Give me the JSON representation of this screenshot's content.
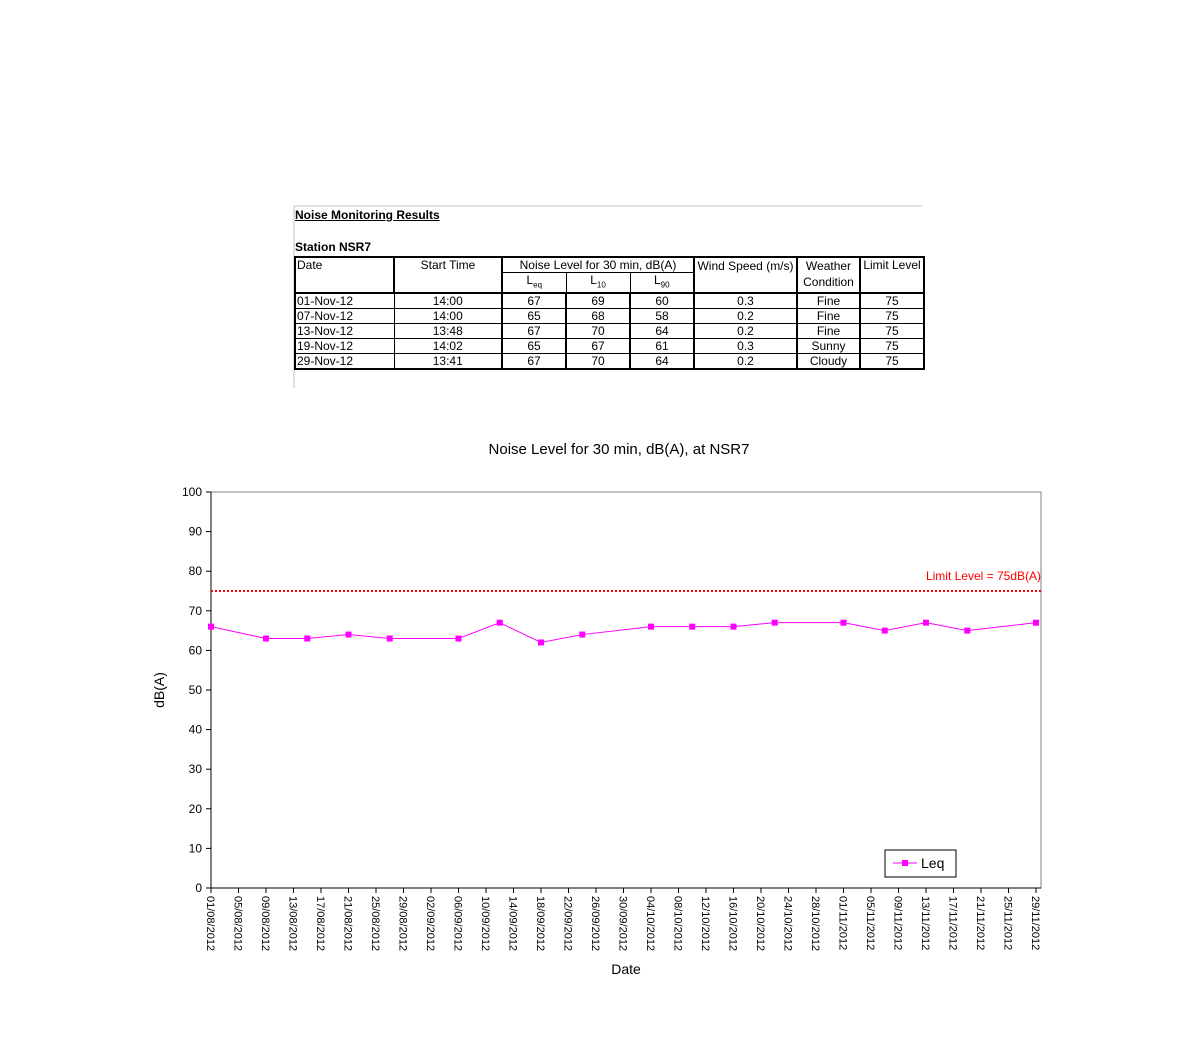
{
  "header": {
    "title": "Noise Monitoring Results",
    "station": "Station NSR7"
  },
  "table": {
    "headers": {
      "date": "Date",
      "start_time": "Start Time",
      "noise_level": "Noise Level for 30 min, dB(A)",
      "levels": [
        {
          "base": "L",
          "sub": "eq"
        },
        {
          "base": "L",
          "sub": "10"
        },
        {
          "base": "L",
          "sub": "90"
        }
      ],
      "wind_speed": "Wind Speed (m/s)",
      "weather": "Weather Condition",
      "limit": "Limit Level"
    },
    "rows": [
      [
        "01-Nov-12",
        "14:00",
        67,
        69,
        60,
        0.3,
        "Fine",
        75
      ],
      [
        "07-Nov-12",
        "14:00",
        65,
        68,
        58,
        0.2,
        "Fine",
        75
      ],
      [
        "13-Nov-12",
        "13:48",
        67,
        70,
        64,
        0.2,
        "Fine",
        75
      ],
      [
        "19-Nov-12",
        "14:02",
        65,
        67,
        61,
        0.3,
        "Sunny",
        75
      ],
      [
        "29-Nov-12",
        "13:41",
        67,
        70,
        64,
        0.2,
        "Cloudy",
        75
      ]
    ]
  },
  "chart_data": {
    "type": "line",
    "title": "Noise Level for 30 min, dB(A), at NSR7",
    "x_label": "Date",
    "y_label": "dB(A)",
    "x": [
      "01/08/2012",
      "09/08/2012",
      "15/08/2012",
      "21/08/2012",
      "27/08/2012",
      "06/09/2012",
      "12/09/2012",
      "18/09/2012",
      "24/09/2012",
      "04/10/2012",
      "10/10/2012",
      "16/10/2012",
      "22/10/2012",
      "01/11/2012",
      "07/11/2012",
      "13/11/2012",
      "19/11/2012",
      "29/11/2012"
    ],
    "series": [
      {
        "name": "Leq",
        "color": "#ff00ff",
        "values": [
          66,
          63,
          63,
          64,
          63,
          63,
          67,
          62,
          64,
          66,
          66,
          66,
          67,
          67,
          65,
          67,
          65,
          67
        ]
      }
    ],
    "limit_line": {
      "value": 75,
      "label": "Limit Level = 75dB(A)",
      "color": "#ff0000"
    },
    "xlim": [
      "01/08/2012",
      "29/11/2012"
    ],
    "xticks": [
      "01/08/2012",
      "05/08/2012",
      "09/08/2012",
      "13/08/2012",
      "17/08/2012",
      "21/08/2012",
      "25/08/2012",
      "29/08/2012",
      "02/09/2012",
      "06/09/2012",
      "10/09/2012",
      "14/09/2012",
      "18/09/2012",
      "22/09/2012",
      "26/09/2012",
      "30/09/2012",
      "04/10/2012",
      "08/10/2012",
      "12/10/2012",
      "16/10/2012",
      "20/10/2012",
      "24/10/2012",
      "28/10/2012",
      "01/11/2012",
      "05/11/2012",
      "09/11/2012",
      "13/11/2012",
      "17/11/2012",
      "21/11/2012",
      "25/11/2012",
      "29/11/2012"
    ],
    "ylim": [
      0,
      100
    ],
    "yticks": [
      0,
      10,
      20,
      30,
      40,
      50,
      60,
      70,
      80,
      90,
      100
    ],
    "legend": "bottom-right"
  }
}
